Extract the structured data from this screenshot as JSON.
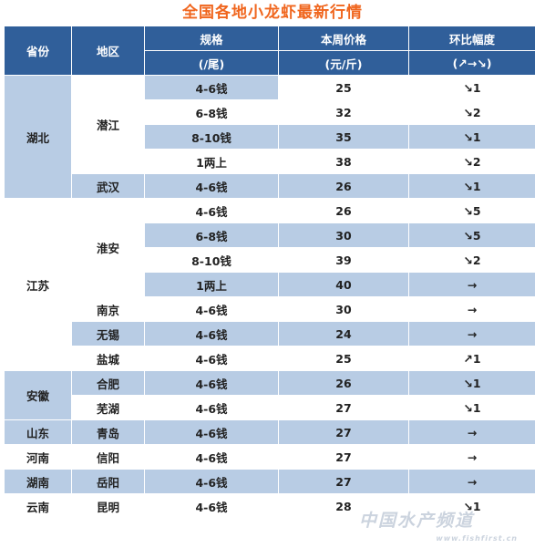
{
  "title": "全国各地小龙虾最新行情",
  "header": {
    "province": "省份",
    "region": "地区",
    "spec": "规格",
    "spec_unit": "(/尾)",
    "price": "本周价格",
    "price_unit": "(元/斤)",
    "change": "环比幅度",
    "change_legend": "(↗→↘)"
  },
  "rows": [
    {
      "province": "",
      "region": "",
      "spec": "4-6钱",
      "price": "25",
      "change": "↘1"
    },
    {
      "province": "",
      "region": "",
      "spec": "6-8钱",
      "price": "32",
      "change": "↘2"
    },
    {
      "province": "",
      "region": "潜江",
      "spec": "8-10钱",
      "price": "35",
      "change": "↘1"
    },
    {
      "province": "",
      "region": "",
      "spec": "1两上",
      "price": "38",
      "change": "↘2"
    },
    {
      "province": "湖北",
      "region": "武汉",
      "spec": "4-6钱",
      "price": "26",
      "change": "↘1"
    },
    {
      "province": "",
      "region": "",
      "spec": "4-6钱",
      "price": "26",
      "change": "↘5"
    },
    {
      "province": "",
      "region": "",
      "spec": "6-8钱",
      "price": "30",
      "change": "↘5"
    },
    {
      "province": "",
      "region": "淮安",
      "spec": "8-10钱",
      "price": "39",
      "change": "↘2"
    },
    {
      "province": "",
      "region": "",
      "spec": "1两上",
      "price": "40",
      "change": "→"
    },
    {
      "province": "",
      "region": "南京",
      "spec": "4-6钱",
      "price": "30",
      "change": "→"
    },
    {
      "province": "",
      "region": "无锡",
      "spec": "4-6钱",
      "price": "24",
      "change": "→"
    },
    {
      "province": "江苏",
      "region": "盐城",
      "spec": "4-6钱",
      "price": "25",
      "change": "↗1"
    },
    {
      "province": "",
      "region": "合肥",
      "spec": "4-6钱",
      "price": "26",
      "change": "↘1"
    },
    {
      "province": "安徽",
      "region": "芜湖",
      "spec": "4-6钱",
      "price": "27",
      "change": "↘1"
    },
    {
      "province": "山东",
      "region": "青岛",
      "spec": "4-6钱",
      "price": "27",
      "change": "→"
    },
    {
      "province": "河南",
      "region": "信阳",
      "spec": "4-6钱",
      "price": "27",
      "change": "→"
    },
    {
      "province": "湖南",
      "region": "岳阳",
      "spec": "4-6钱",
      "price": "27",
      "change": "→"
    },
    {
      "province": "云南",
      "region": "昆明",
      "spec": "4-6钱",
      "price": "28",
      "change": "↘1"
    }
  ],
  "watermark": {
    "text": "中国水产频道",
    "url": "www.fishfirst.cn"
  },
  "colors": {
    "header_bg": "#305f9a",
    "row_blue": "#b8cce4",
    "title": "#f0661e",
    "down": "#2ea043",
    "up": "#e23a2c"
  }
}
